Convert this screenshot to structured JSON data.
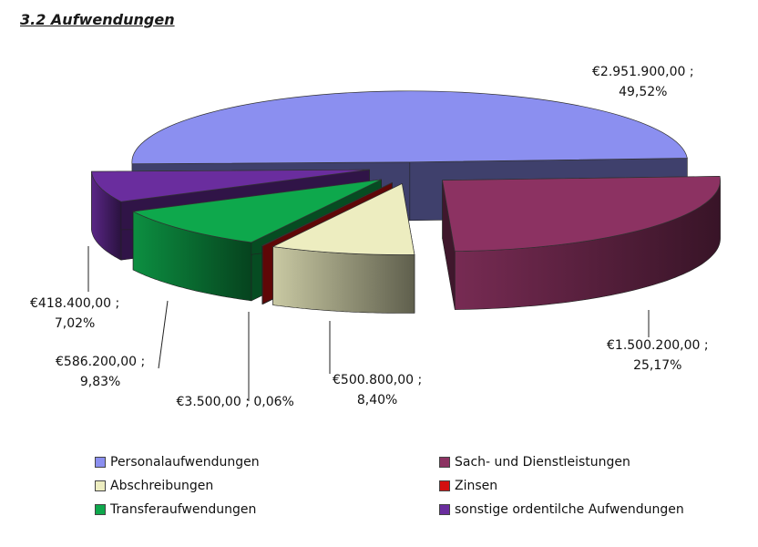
{
  "title": "3.2  Aufwendungen",
  "chart_data": {
    "type": "pie",
    "title": "3.2  Aufwendungen",
    "three_d": true,
    "exploded": true,
    "legend_position": "bottom",
    "slices": [
      {
        "name": "Personalaufwendungen",
        "value": 2951900.0,
        "value_label": "€2.951.900,00 ;",
        "percent_label": "49,52%",
        "color": "#8b8ff0"
      },
      {
        "name": "Sach- und Dienstleistungen",
        "value": 1500200.0,
        "value_label": "€1.500.200,00 ;",
        "percent_label": "25,17%",
        "color": "#8c3262"
      },
      {
        "name": "Abschreibungen",
        "value": 500800.0,
        "value_label": "€500.800,00 ;",
        "percent_label": "8,40%",
        "color": "#ededc0"
      },
      {
        "name": "Zinsen",
        "value": 3500.0,
        "value_label": "€3.500,00 ; 0,06%",
        "percent_label": "",
        "color": "#d31010"
      },
      {
        "name": "Transferaufwendungen",
        "value": 586200.0,
        "value_label": "€586.200,00 ;",
        "percent_label": "9,83%",
        "color": "#0ea84c"
      },
      {
        "name": "sonstige ordentilche Aufwendungen",
        "value": 418400.0,
        "value_label": "€418.400,00 ;",
        "percent_label": "7,02%",
        "color": "#6a2d9e"
      }
    ]
  }
}
